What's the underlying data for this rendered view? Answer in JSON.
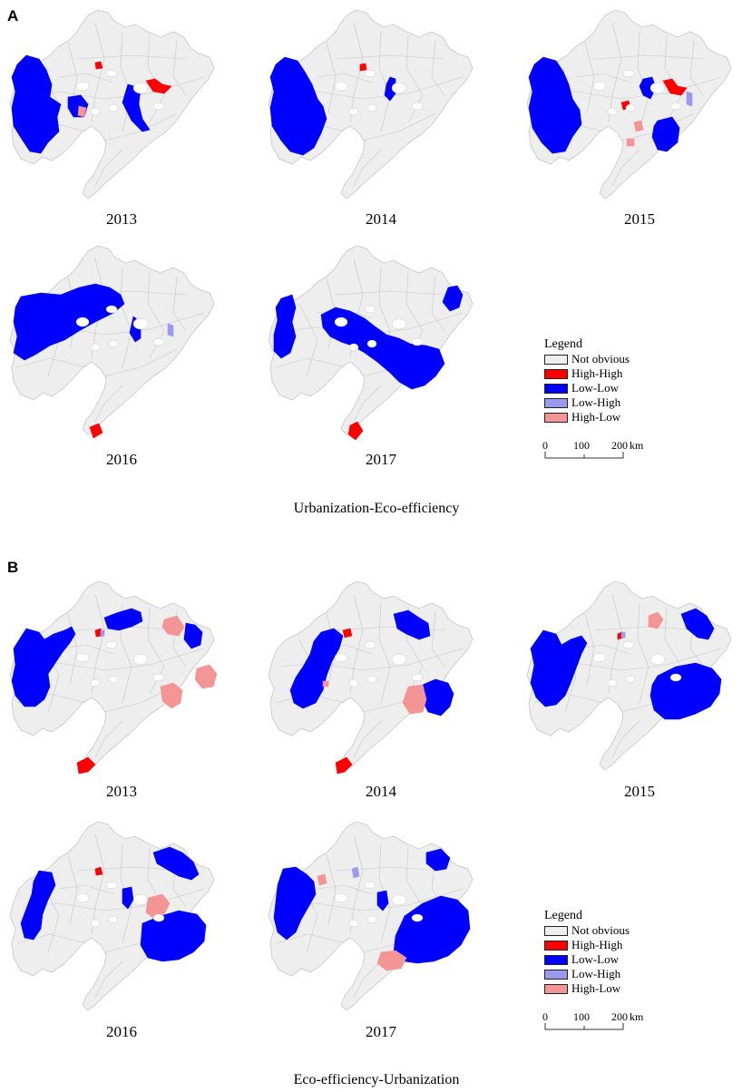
{
  "panel_a": {
    "label": "A",
    "caption": "Urbanization-Eco-efficiency",
    "years": [
      "2013",
      "2014",
      "2015",
      "2016",
      "2017"
    ]
  },
  "panel_b": {
    "label": "B",
    "caption": "Eco-efficiency-Urbanization",
    "years": [
      "2013",
      "2014",
      "2015",
      "2016",
      "2017"
    ]
  },
  "legend": {
    "title": "Legend",
    "items": [
      {
        "label": "Not obvious",
        "color": "#eeeeee"
      },
      {
        "label": "High-High",
        "color": "#ff0000"
      },
      {
        "label": "Low-Low",
        "color": "#0000ff"
      },
      {
        "label": "Low-High",
        "color": "#9999ee"
      },
      {
        "label": "High-Low",
        "color": "#f49595"
      }
    ],
    "scale": {
      "ticks": [
        "0",
        "100",
        "200"
      ],
      "unit": "km"
    }
  },
  "colors": {
    "base": "#eeeeee",
    "border": "#c6c6c6",
    "high_high": "#ff0000",
    "low_low": "#0000ff",
    "low_high": "#9999ee",
    "high_low": "#f49595"
  }
}
